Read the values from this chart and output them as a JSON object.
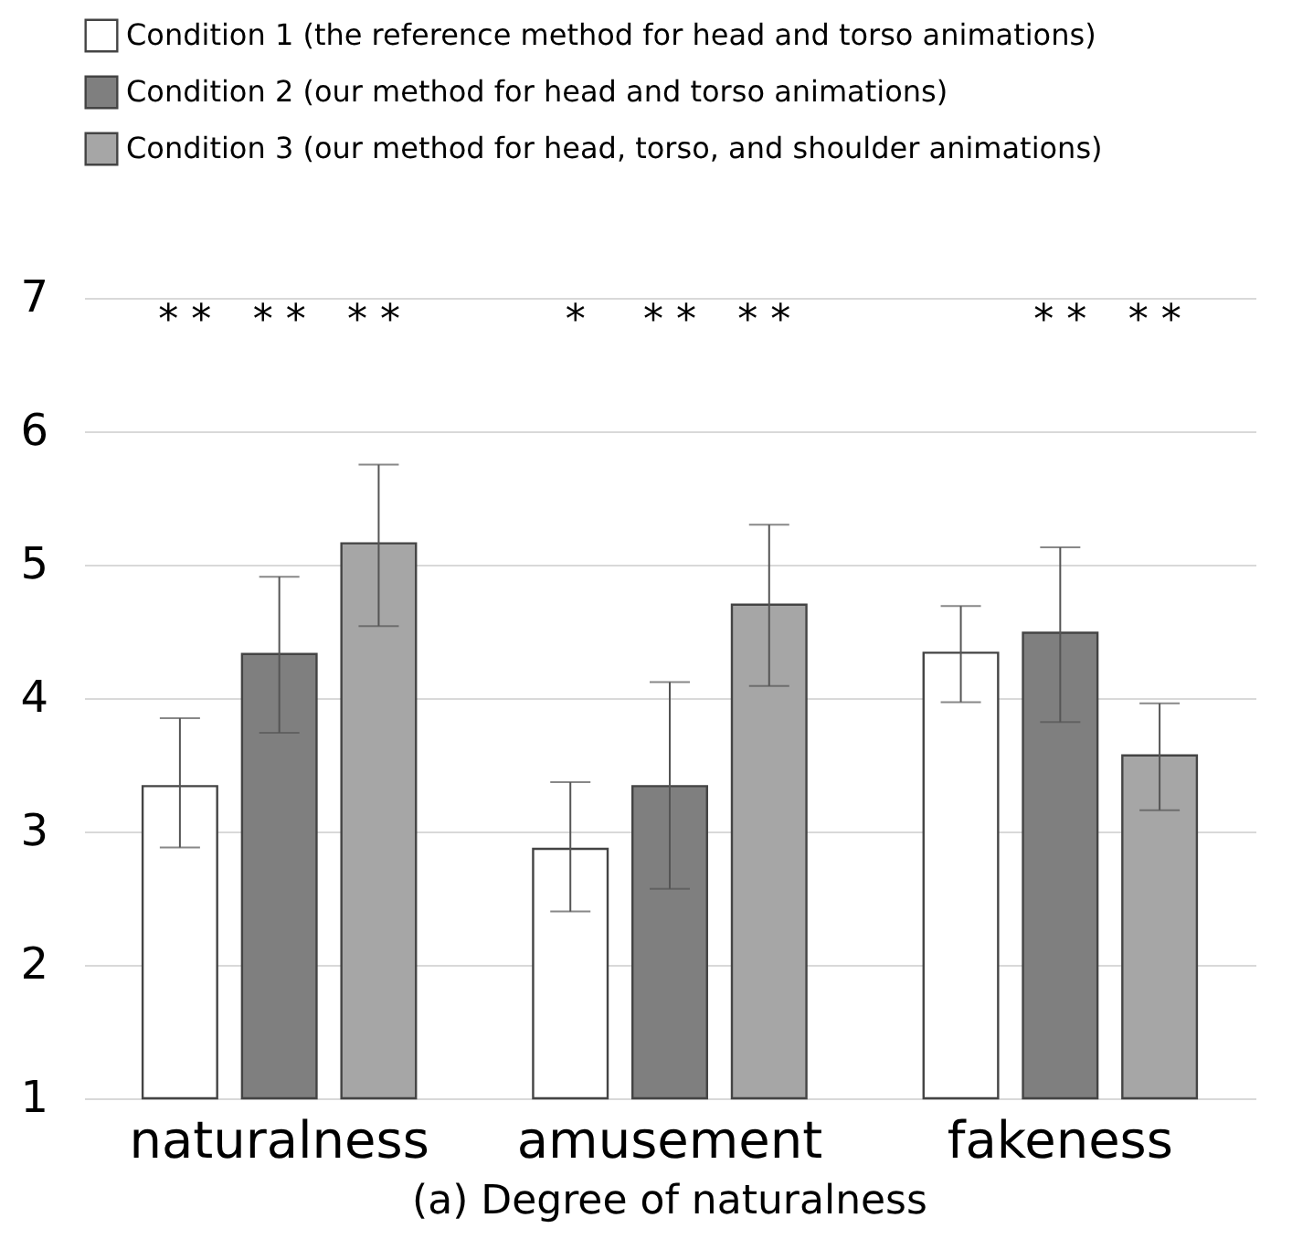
{
  "chart_data": {
    "type": "bar",
    "title": "(a) Degree of naturalness",
    "categories": [
      "naturalness",
      "amusement",
      "fakeness"
    ],
    "series": [
      {
        "name": "Condition 1 (the reference method for head and torso animations)",
        "color": "#ffffff",
        "values": [
          3.34,
          2.87,
          4.34
        ],
        "errors": [
          [
            2.88,
            3.85
          ],
          [
            2.4,
            3.37
          ],
          [
            3.97,
            4.69
          ]
        ]
      },
      {
        "name": "Condition 2 (our method for head and torso animations)",
        "color": "#7f7f7f",
        "values": [
          4.33,
          3.34,
          4.49
        ],
        "errors": [
          [
            3.74,
            4.91
          ],
          [
            2.57,
            4.12
          ],
          [
            3.82,
            5.13
          ]
        ]
      },
      {
        "name": "Condition 3 (our method for head, torso, and shoulder animations)",
        "color": "#a6a6a6",
        "values": [
          5.16,
          4.7,
          3.57
        ],
        "errors": [
          [
            4.54,
            5.75
          ],
          [
            4.09,
            5.3
          ],
          [
            3.16,
            3.96
          ]
        ]
      }
    ],
    "ylim": [
      1,
      7
    ],
    "yticks": [
      1,
      2,
      3,
      4,
      5,
      6,
      7
    ],
    "grid": "y",
    "legend": "top left",
    "annotations": [
      "* *",
      "* *",
      "* *",
      "* *",
      "*",
      "* *",
      "* *",
      "* *"
    ]
  }
}
